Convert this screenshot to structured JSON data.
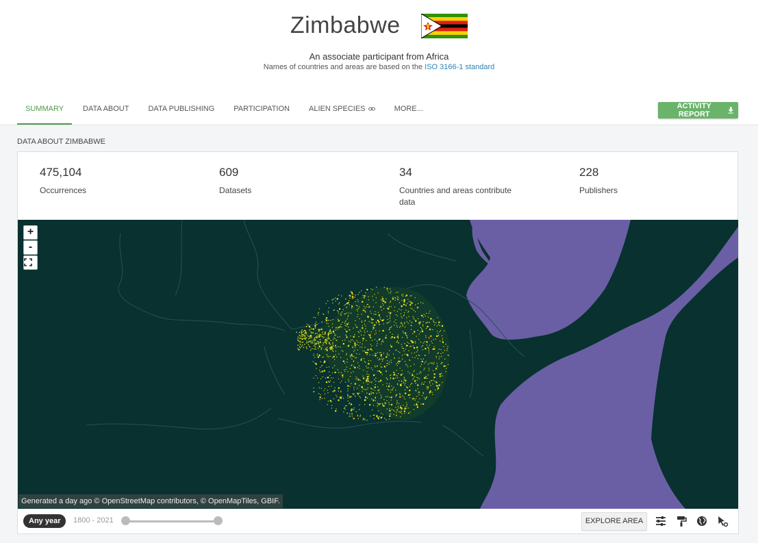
{
  "header": {
    "title": "Zimbabwe",
    "subtitle": "An associate participant from Africa",
    "note_prefix": "Names of countries and areas are based on the ",
    "note_link": "ISO 3166-1 standard"
  },
  "tabs": [
    {
      "label": "SUMMARY",
      "active": true
    },
    {
      "label": "DATA ABOUT",
      "active": false
    },
    {
      "label": "DATA PUBLISHING",
      "active": false
    },
    {
      "label": "PARTICIPATION",
      "active": false
    },
    {
      "label": "ALIEN SPECIES",
      "active": false
    },
    {
      "label": "MORE...",
      "active": false
    }
  ],
  "activity_report": {
    "label": "ACTIVITY REPORT"
  },
  "section_title": "DATA ABOUT ZIMBABWE",
  "stats": [
    {
      "value": "475,104",
      "label": "Occurrences"
    },
    {
      "value": "609",
      "label": "Datasets"
    },
    {
      "value": "34",
      "label": "Countries and areas contribute data"
    },
    {
      "value": "228",
      "label": "Publishers"
    }
  ],
  "map": {
    "zoom_in": "+",
    "zoom_out": "-",
    "attribution": "Generated a day ago © OpenStreetMap contributors, © OpenMapTiles, GBIF.",
    "colors": {
      "water": "#6a5fa4",
      "land": "#08312f",
      "border": "#28515a",
      "points": "#e6e41c",
      "points_hot": "#ffb300"
    }
  },
  "map_footer": {
    "year_pill": "Any year",
    "year_range": "1800 - 2021",
    "explore_label": "EXPLORE AREA",
    "tools": [
      "sliders-icon",
      "paint-roller-icon",
      "globe-icon",
      "cursor-select-icon"
    ]
  },
  "colors": {
    "accent": "#4d9a4a",
    "button": "#69b36a",
    "link": "#2a82b5"
  }
}
